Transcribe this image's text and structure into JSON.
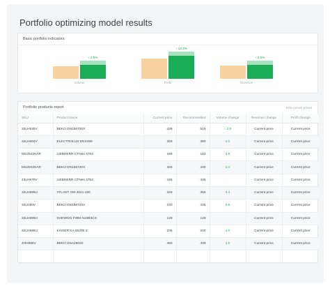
{
  "page": {
    "title": "Portfolio optimizing model results"
  },
  "indicators": {
    "title": "Basic portfolio indicators",
    "items": [
      {
        "label": "Volume",
        "delta": "↑ 2.5%",
        "base": 0.55,
        "new": 0.62,
        "new_color": "#1aad55"
      },
      {
        "label": "Profit",
        "delta": "↑ 12.3%",
        "base": 0.88,
        "new": 1.0,
        "new_color": "#1aad55"
      },
      {
        "label": "Revenue",
        "delta": "↑ 5.5%",
        "base": 0.58,
        "new": 0.62,
        "new_color": "#1aad55"
      }
    ],
    "colors": {
      "base": "#f7d29c",
      "new": "#1aad55",
      "extension": "#a5e2bd"
    }
  },
  "products": {
    "title": "Portfolio products report",
    "edit_link": "Edit current prices",
    "columns": [
      "SKU",
      "Product name",
      "Current price",
      "Recommended",
      "Volume change",
      "Revenue change",
      "Profit change"
    ],
    "rows": [
      {
        "sku": "32LH530V",
        "name": "BEKO DN156720X",
        "current": "439",
        "recommended": "519",
        "volume": "↑ 2.6",
        "revenue": "Current price",
        "profit": "Current price",
        "vol_style": "up"
      },
      {
        "sku": "32LH604V",
        "name": "ELECTROLUX ENX499",
        "current": "349",
        "recommended": "360",
        "volume": "4.2",
        "revenue": "Current price",
        "profit": "Current price",
        "vol_style": "up"
      },
      {
        "sku": "MS2043HAR",
        "name": "LIEBHERR CTNes 4753",
        "current": "189",
        "recommended": "193",
        "volume": "3.6",
        "revenue": "Current price",
        "profit": "Current price",
        "vol_style": "up"
      },
      {
        "sku": "MS2043HAR",
        "name": "BEKO DN156720X",
        "current": "325",
        "recommended": "330",
        "volume": "3.4",
        "revenue": "Current price",
        "profit": "Current price",
        "vol_style": "up"
      },
      {
        "sku": "43LH570V",
        "name": "LIEBHERR CTNes 4753",
        "current": "445",
        "recommended": "445",
        "volume": "-",
        "revenue": "Current price",
        "profit": "Current price",
        "vol_style": "dim"
      },
      {
        "sku": "32LH595U",
        "name": "ATLANT XM-4021-100",
        "current": "349",
        "recommended": "355",
        "volume": "3.3",
        "revenue": "Current price",
        "profit": "Current price",
        "vol_style": "up"
      },
      {
        "sku": "32LH50V",
        "name": "BEKO DN156720X",
        "current": "240",
        "recommended": "245",
        "volume": "2.9",
        "revenue": "Current price",
        "profit": "Current price",
        "vol_style": "up"
      },
      {
        "sku": "32LH595U",
        "name": "DAEWOO FWM-X22B3CS",
        "current": "129",
        "recommended": "129",
        "volume": "-",
        "revenue": "Current price",
        "profit": "Current price",
        "vol_style": "dim"
      },
      {
        "sku": "32LH595U",
        "name": "KAISER KA 65205 S",
        "current": "235",
        "recommended": "240",
        "volume": "4.0",
        "revenue": "Current price",
        "profit": "Current price",
        "vol_style": "up"
      },
      {
        "sku": "4HH595V",
        "name": "BEKO DSA28020",
        "current": "450",
        "recommended": "439",
        "volume": "3.0",
        "revenue": "Current price",
        "profit": "Current price",
        "vol_style": "up"
      }
    ]
  }
}
